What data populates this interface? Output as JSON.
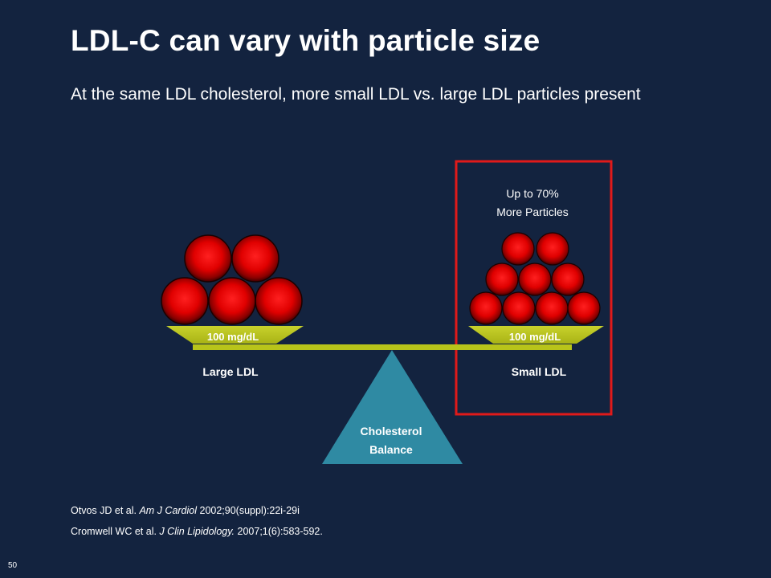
{
  "title": "LDL-C can vary with particle size",
  "subtitle": "At the same LDL cholesterol, more small LDL vs. large LDL particles present",
  "left_pan": {
    "value_label": "100 mg/dL",
    "caption": "Large LDL"
  },
  "right_pan": {
    "value_label": "100 mg/dL",
    "caption": "Small LDL"
  },
  "callout": {
    "line1": "Up to 70%",
    "line2": "More Particles"
  },
  "fulcrum": {
    "line1": "Cholesterol",
    "line2": "Balance"
  },
  "references": [
    {
      "authors": "Otvos JD et al.",
      "journal": "Am J Cardiol",
      "citation": "2002;90(suppl):22i-29i"
    },
    {
      "authors": "Cromwell WC et al.",
      "journal": "J Clin Lipidology.",
      "citation": "2007;1(6):583-592."
    }
  ],
  "slide_number": "50",
  "colors": {
    "background": "#13233f",
    "beam": "#b8c41a",
    "pan": "#c6cf2a",
    "fulcrum": "#2f8aa3",
    "highlight_box": "#e01a1a",
    "particle": "#e00000"
  }
}
